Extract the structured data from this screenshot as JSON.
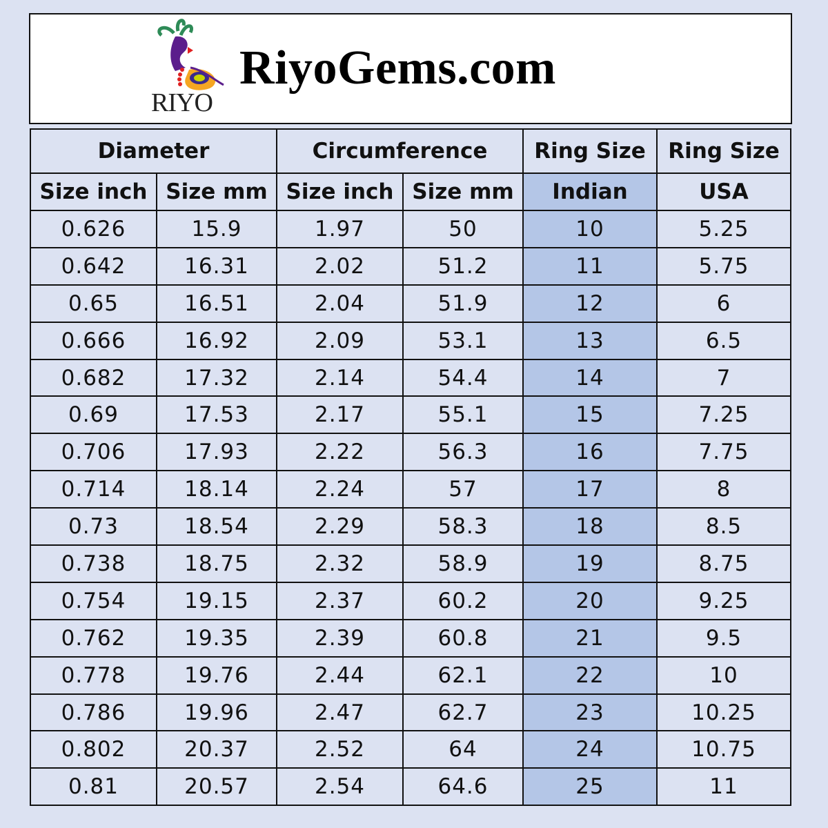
{
  "header": {
    "logo_text": "RIYO",
    "site_title": "RiyoGems.com"
  },
  "colors": {
    "background": "#dce2f2",
    "highlight_column": "#b4c6e7"
  },
  "table": {
    "group_headers": [
      "Diameter",
      "Circumference",
      "Ring Size",
      "Ring Size"
    ],
    "sub_headers": [
      "Size inch",
      "Size mm",
      "Size inch",
      "Size mm",
      "Indian",
      "USA"
    ],
    "rows": [
      [
        "0.626",
        "15.9",
        "1.97",
        "50",
        "10",
        "5.25"
      ],
      [
        "0.642",
        "16.31",
        "2.02",
        "51.2",
        "11",
        "5.75"
      ],
      [
        "0.65",
        "16.51",
        "2.04",
        "51.9",
        "12",
        "6"
      ],
      [
        "0.666",
        "16.92",
        "2.09",
        "53.1",
        "13",
        "6.5"
      ],
      [
        "0.682",
        "17.32",
        "2.14",
        "54.4",
        "14",
        "7"
      ],
      [
        "0.69",
        "17.53",
        "2.17",
        "55.1",
        "15",
        "7.25"
      ],
      [
        "0.706",
        "17.93",
        "2.22",
        "56.3",
        "16",
        "7.75"
      ],
      [
        "0.714",
        "18.14",
        "2.24",
        "57",
        "17",
        "8"
      ],
      [
        "0.73",
        "18.54",
        "2.29",
        "58.3",
        "18",
        "8.5"
      ],
      [
        "0.738",
        "18.75",
        "2.32",
        "58.9",
        "19",
        "8.75"
      ],
      [
        "0.754",
        "19.15",
        "2.37",
        "60.2",
        "20",
        "9.25"
      ],
      [
        "0.762",
        "19.35",
        "2.39",
        "60.8",
        "21",
        "9.5"
      ],
      [
        "0.778",
        "19.76",
        "2.44",
        "62.1",
        "22",
        "10"
      ],
      [
        "0.786",
        "19.96",
        "2.47",
        "62.7",
        "23",
        "10.25"
      ],
      [
        "0.802",
        "20.37",
        "2.52",
        "64",
        "24",
        "10.75"
      ],
      [
        "0.81",
        "20.57",
        "2.54",
        "64.6",
        "25",
        "11"
      ]
    ]
  }
}
